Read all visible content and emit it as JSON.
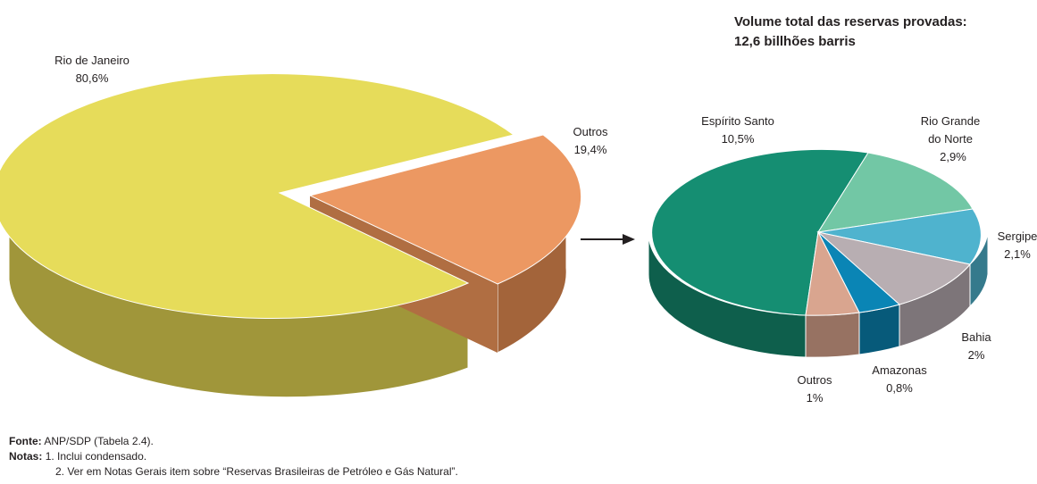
{
  "title": {
    "line1": "Volume total das reservas provadas:",
    "line2": "12,6 billhões barris"
  },
  "chart_data": [
    {
      "type": "pie",
      "name": "",
      "slices": [
        {
          "label": "Rio de Janeiro",
          "value_label": "80,6%",
          "value": 80.6,
          "color": "#e6dc5a",
          "side_color": "#a0963a",
          "exploded": false
        },
        {
          "label": "Outros",
          "value_label": "19,4%",
          "value": 19.4,
          "color": "#ec9862",
          "side_color": "#a3643a",
          "exploded": true
        }
      ]
    },
    {
      "type": "pie",
      "name": "",
      "slices": [
        {
          "label": "Espírito Santo",
          "value_label": "10,5%",
          "value": 10.5,
          "color": "#158e72",
          "side_color": "#0e5f4c"
        },
        {
          "label": "Rio Grande do Norte",
          "label_lines": [
            "Rio Grande",
            "do Norte"
          ],
          "value_label": "2,9%",
          "value": 2.9,
          "color": "#72c7a5",
          "side_color": "#4c8a72"
        },
        {
          "label": "Sergipe",
          "value_label": "2,1%",
          "value": 2.1,
          "color": "#4fb3ce",
          "side_color": "#357a8c"
        },
        {
          "label": "Bahia",
          "value_label": "2%",
          "value": 2.0,
          "color": "#b8aeb2",
          "side_color": "#7d7579"
        },
        {
          "label": "Amazonas",
          "value_label": "0,8%",
          "value": 0.8,
          "color": "#0a85b5",
          "side_color": "#075a7a"
        },
        {
          "label": "Outros",
          "value_label": "1%",
          "value": 1.0,
          "color": "#d9a58f",
          "side_color": "#977262"
        }
      ]
    }
  ],
  "footer": {
    "source_label": "Fonte:",
    "source_text": "ANP/SDP (Tabela 2.4).",
    "notes_label": "Notas:",
    "note1": "1. Inclui condensado.",
    "note2": "2. Ver em Notas Gerais item sobre “Reservas Brasileiras de Petróleo e Gás Natural”."
  }
}
